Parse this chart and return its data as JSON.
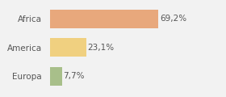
{
  "categories": [
    "Africa",
    "America",
    "Europa"
  ],
  "values": [
    69.2,
    23.1,
    7.7
  ],
  "labels": [
    "69,2%",
    "23,1%",
    "7,7%"
  ],
  "bar_colors": [
    "#e8a87c",
    "#f0d080",
    "#a8bf8a"
  ],
  "background_color": "#f2f2f2",
  "xlim": [
    0,
    105
  ],
  "label_fontsize": 7.5,
  "tick_fontsize": 7.5,
  "bar_height": 0.65
}
